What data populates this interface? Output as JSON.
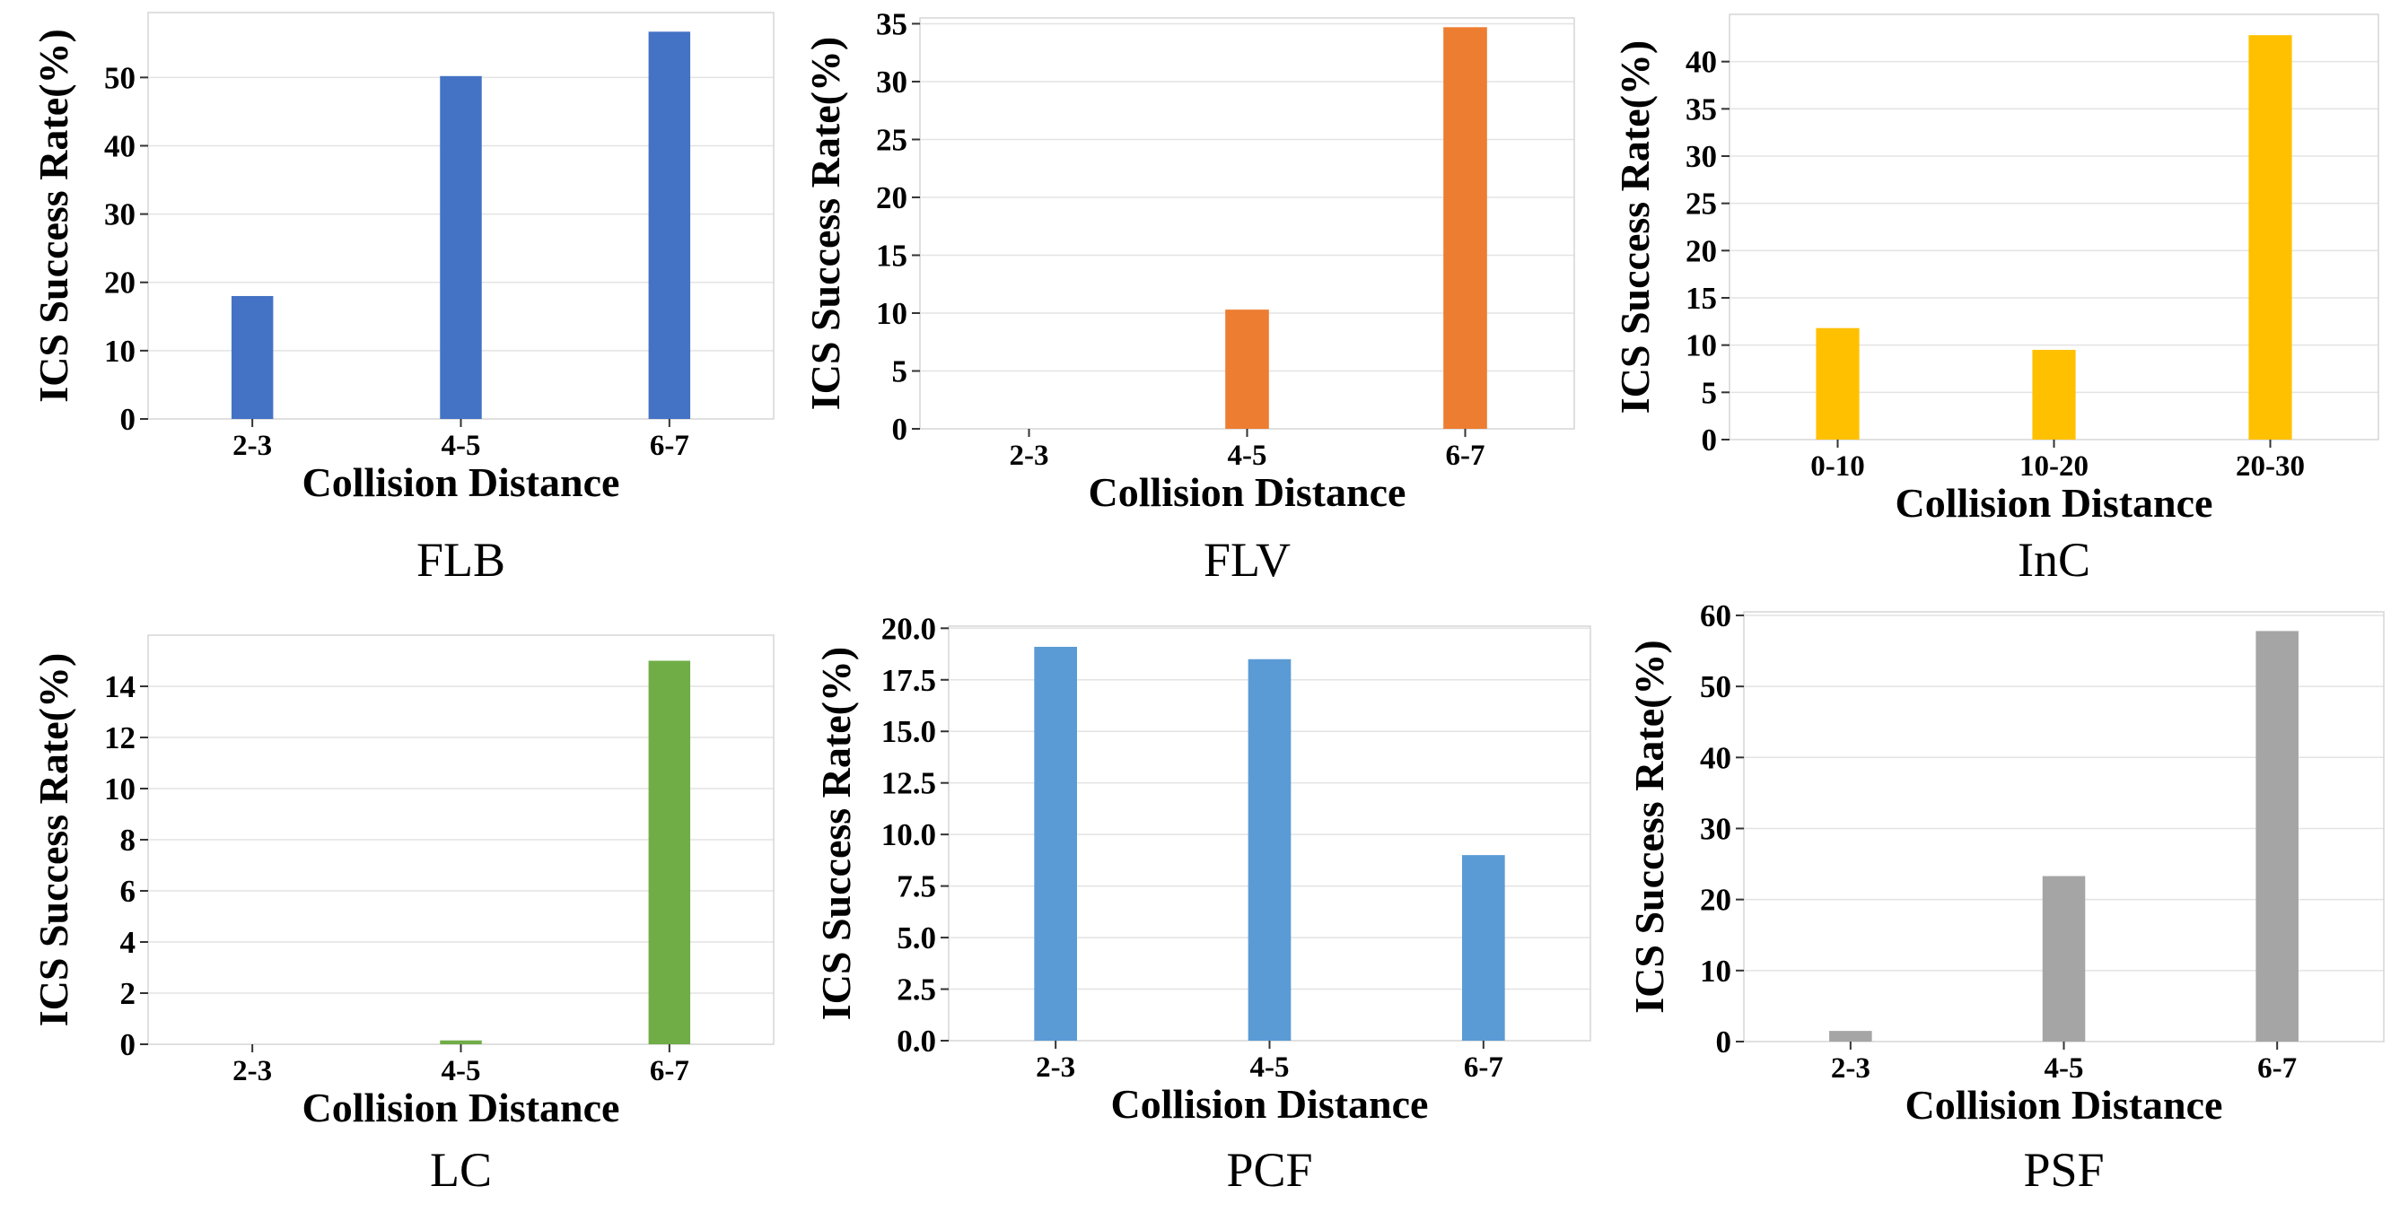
{
  "figure": {
    "panels_count": 6
  },
  "chart_data": [
    {
      "type": "bar",
      "caption": "FLB",
      "categories": [
        "2-3",
        "4-5",
        "6-7"
      ],
      "values": [
        18,
        50.2,
        56.7
      ],
      "color": "#4472C4",
      "xlabel": "Collision Distance",
      "ylabel": "ICS Success Rate(%)",
      "ylim": [
        0,
        59.5
      ],
      "yticks": [
        0,
        10,
        20,
        30,
        40,
        50
      ],
      "ytick_labels": [
        "0",
        "10",
        "20",
        "30",
        "40",
        "50"
      ],
      "grid": true
    },
    {
      "type": "bar",
      "caption": "FLV",
      "categories": [
        "2-3",
        "4-5",
        "6-7"
      ],
      "values": [
        0,
        10.3,
        34.7
      ],
      "color": "#ED7D31",
      "xlabel": "Collision Distance",
      "ylabel": "ICS Success Rate(%)",
      "ylim": [
        0,
        35.5
      ],
      "yticks": [
        0,
        5,
        10,
        15,
        20,
        25,
        30,
        35
      ],
      "ytick_labels": [
        "0",
        "5",
        "10",
        "15",
        "20",
        "25",
        "30",
        "35"
      ],
      "grid": true
    },
    {
      "type": "bar",
      "caption": "InC",
      "categories": [
        "0-10",
        "10-20",
        "20-30"
      ],
      "values": [
        11.8,
        9.5,
        42.8
      ],
      "color": "#FFC000",
      "xlabel": "Collision Distance",
      "ylabel": "ICS Success Rate(%)",
      "ylim": [
        0,
        45
      ],
      "yticks": [
        0,
        5,
        10,
        15,
        20,
        25,
        30,
        35,
        40
      ],
      "ytick_labels": [
        "0",
        "5",
        "10",
        "15",
        "20",
        "25",
        "30",
        "35",
        "40"
      ],
      "grid": true
    },
    {
      "type": "bar",
      "caption": "LC",
      "categories": [
        "2-3",
        "4-5",
        "6-7"
      ],
      "values": [
        0,
        0.15,
        15
      ],
      "color": "#70AD47",
      "xlabel": "Collision Distance",
      "ylabel": "ICS Success Rate(%)",
      "ylim": [
        0,
        16
      ],
      "yticks": [
        0,
        2,
        4,
        6,
        8,
        10,
        12,
        14
      ],
      "ytick_labels": [
        "0",
        "2",
        "4",
        "6",
        "8",
        "10",
        "12",
        "14"
      ],
      "grid": true
    },
    {
      "type": "bar",
      "caption": "PCF",
      "categories": [
        "2-3",
        "4-5",
        "6-7"
      ],
      "values": [
        19.1,
        18.5,
        9
      ],
      "color": "#5B9BD5",
      "xlabel": "Collision Distance",
      "ylabel": "ICS Success Rate(%)",
      "ylim": [
        0,
        20.1
      ],
      "yticks": [
        0,
        2.5,
        5,
        7.5,
        10,
        12.5,
        15,
        17.5,
        20
      ],
      "ytick_labels": [
        "0.0",
        "2.5",
        "5.0",
        "7.5",
        "10.0",
        "12.5",
        "15.0",
        "17.5",
        "20.0"
      ],
      "grid": true
    },
    {
      "type": "bar",
      "caption": "PSF",
      "categories": [
        "2-3",
        "4-5",
        "6-7"
      ],
      "values": [
        1.5,
        23.3,
        57.8
      ],
      "color": "#A5A5A5",
      "xlabel": "Collision Distance",
      "ylabel": "ICS Success Rate(%)",
      "ylim": [
        0,
        60.5
      ],
      "yticks": [
        0,
        10,
        20,
        30,
        40,
        50,
        60
      ],
      "ytick_labels": [
        "0",
        "10",
        "20",
        "30",
        "40",
        "50",
        "60"
      ],
      "grid": true
    }
  ]
}
